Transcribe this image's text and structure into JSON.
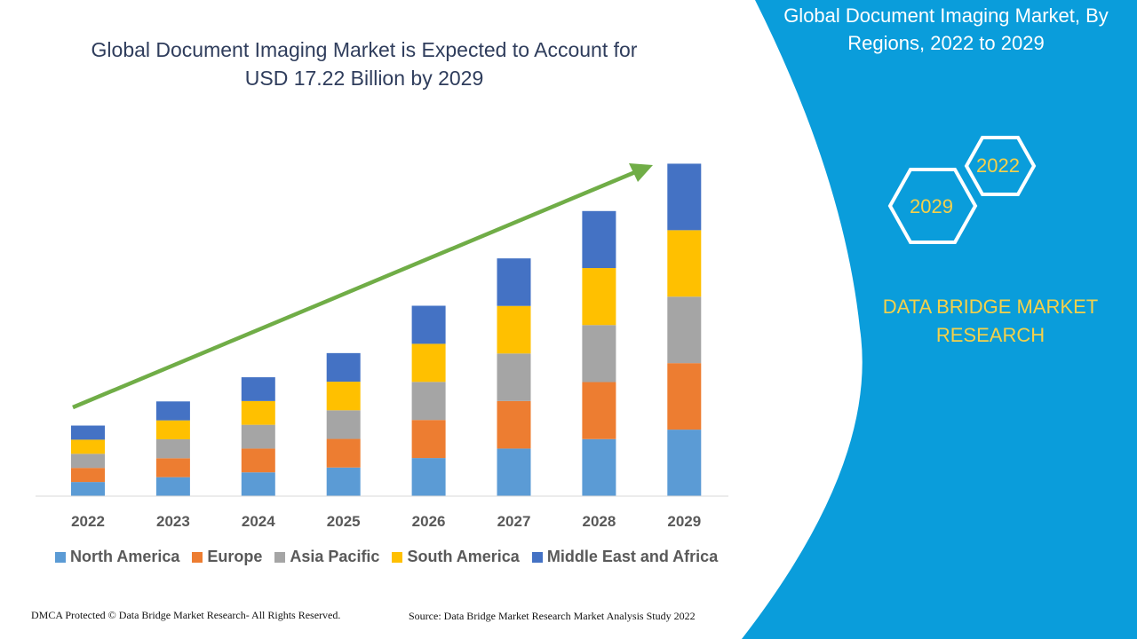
{
  "title": "Global Document Imaging Market is Expected to Account for USD 17.22 Billion by 2029",
  "side_panel": {
    "title": "Global Document Imaging Market, By Regions, 2022 to 2029",
    "hex_years": [
      "2022",
      "2029"
    ],
    "brand": "DATA BRIDGE MARKET RESEARCH",
    "color": "#0a9ddb"
  },
  "footer": {
    "left": "DMCA Protected © Data Bridge Market Research- All Rights Reserved.",
    "right": "Source: Data Bridge Market Research Market Analysis Study 2022"
  },
  "chart_data": {
    "type": "bar",
    "stacked": true,
    "categories": [
      "2022",
      "2023",
      "2024",
      "2025",
      "2026",
      "2027",
      "2028",
      "2029"
    ],
    "series": [
      {
        "name": "North America",
        "color": "#5b9bd5",
        "values": [
          0.73,
          0.98,
          1.23,
          1.48,
          1.97,
          2.46,
          2.95,
          3.44
        ]
      },
      {
        "name": "Europe",
        "color": "#ed7d31",
        "values": [
          0.73,
          0.98,
          1.23,
          1.48,
          1.97,
          2.46,
          2.95,
          3.44
        ]
      },
      {
        "name": "Asia Pacific",
        "color": "#a5a5a5",
        "values": [
          0.73,
          0.98,
          1.23,
          1.48,
          1.97,
          2.46,
          2.95,
          3.44
        ]
      },
      {
        "name": "South America",
        "color": "#ffc000",
        "values": [
          0.73,
          0.98,
          1.23,
          1.48,
          1.97,
          2.46,
          2.95,
          3.44
        ]
      },
      {
        "name": "Middle East and Africa",
        "color": "#4472c4",
        "values": [
          0.73,
          0.98,
          1.23,
          1.48,
          1.97,
          2.46,
          2.95,
          3.44
        ]
      }
    ],
    "ylim": [
      0,
      17.22
    ],
    "grid": false,
    "legend": "bottom",
    "trend_arrow_color": "#70ad47"
  }
}
